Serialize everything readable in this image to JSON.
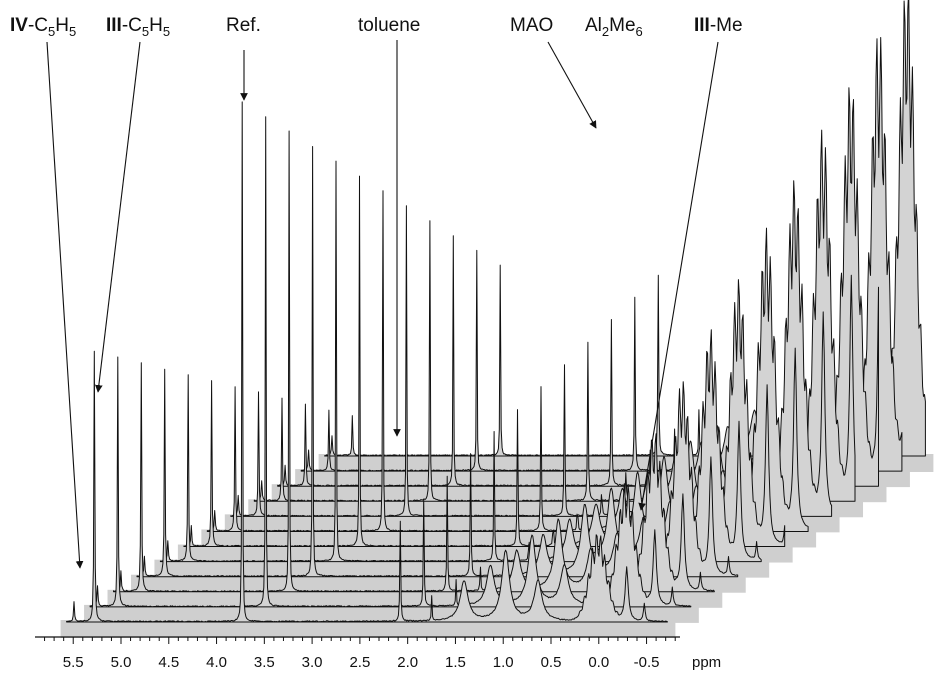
{
  "chart_data": {
    "type": "line",
    "subtype": "stacked 1H NMR spectra (waterfall)",
    "xlabel": "ppm",
    "x_reversed": true,
    "xlim": [
      5.9,
      -0.85
    ],
    "x_ticks": [
      "5.5",
      "5.0",
      "4.5",
      "4.0",
      "3.5",
      "3.0",
      "2.5",
      "2.0",
      "1.5",
      "1.0",
      "0.5",
      "0.0",
      "-0.5"
    ],
    "spectrum_count": 12,
    "grid": false,
    "legend": "none",
    "peaks": [
      {
        "name": "IV-C5H5",
        "ppm": 5.62,
        "height_front": 0.06
      },
      {
        "name": "III-C5H5",
        "ppm": 5.4,
        "height_front": 0.72
      },
      {
        "name": "Ref.",
        "ppm": 3.8,
        "height_front": 1.0
      },
      {
        "name": "toluene",
        "ppm": 2.09,
        "height_front": 0.42
      },
      {
        "name": "MAO",
        "ppm": -0.3,
        "height_front": 0.22
      },
      {
        "name": "Al2Me6",
        "ppm": -0.36,
        "height_front": 0.3
      },
      {
        "name": "III-Me",
        "ppm": -0.55,
        "height_front": 0.1
      }
    ],
    "annotations": [
      {
        "id": "iv-c5h5",
        "bold": "IV",
        "text": "-C",
        "sub1": "5",
        "mid": "H",
        "sub2": "5"
      },
      {
        "id": "iii-c5h5",
        "bold": "III",
        "text": "-C",
        "sub1": "5",
        "mid": "H",
        "sub2": "5"
      },
      {
        "id": "ref",
        "bold": "",
        "text": "Ref."
      },
      {
        "id": "toluene",
        "bold": "",
        "text": "toluene"
      },
      {
        "id": "mao",
        "bold": "",
        "text": "MAO"
      },
      {
        "id": "al2me6",
        "bold": "",
        "text": "Al",
        "sub1": "2",
        "mid": "Me",
        "sub2": "6"
      },
      {
        "id": "iii-me",
        "bold": "III",
        "text": "-Me"
      }
    ]
  }
}
